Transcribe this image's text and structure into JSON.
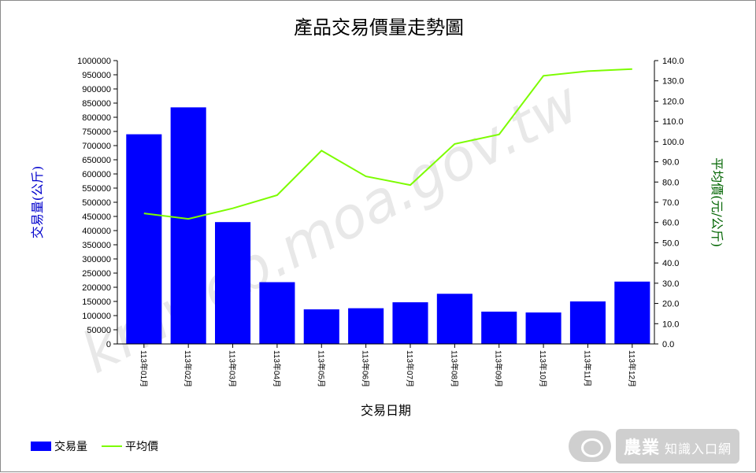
{
  "chart_data": {
    "type": "bar+line",
    "title": "產品交易價量走勢圖",
    "xlabel": "交易日期",
    "ylabel_left": "交易量(公斤)",
    "ylabel_right": "平均價(元/公斤)",
    "categories": [
      "113年01月",
      "113年02月",
      "113年03月",
      "113年04月",
      "113年05月",
      "113年06月",
      "113年07月",
      "113年08月",
      "113年09月",
      "113年10月",
      "113年11月",
      "113年12月"
    ],
    "series": [
      {
        "name": "交易量",
        "type": "bar",
        "axis": "left",
        "color": "#0000ff",
        "values": [
          740000,
          835000,
          430000,
          218000,
          122000,
          126000,
          147000,
          177000,
          114000,
          111000,
          150000,
          220000
        ]
      },
      {
        "name": "平均價",
        "type": "line",
        "axis": "right",
        "color": "#7cfc00",
        "values": [
          64.5,
          61.8,
          67.0,
          73.5,
          95.5,
          82.8,
          78.5,
          98.8,
          103.5,
          132.5,
          134.8,
          135.8
        ]
      }
    ],
    "ylim_left": [
      0,
      1000000
    ],
    "yticks_left": [
      "0",
      "50000",
      "100000",
      "150000",
      "200000",
      "250000",
      "300000",
      "350000",
      "400000",
      "450000",
      "500000",
      "550000",
      "600000",
      "650000",
      "700000",
      "750000",
      "800000",
      "850000",
      "900000",
      "950000",
      "1000000"
    ],
    "ylim_right": [
      0,
      140
    ],
    "yticks_right": [
      "0.0",
      "10.0",
      "20.0",
      "30.0",
      "40.0",
      "50.0",
      "60.0",
      "70.0",
      "80.0",
      "90.0",
      "100.0",
      "110.0",
      "120.0",
      "130.0",
      "140.0"
    ],
    "legend_position": "bottom-left",
    "grid": false
  },
  "watermark": "kmweb.moa.gov.tw",
  "logo": {
    "main": "農業",
    "sub": "知識入口網"
  },
  "colors": {
    "left_axis_label": "#0000cc",
    "right_axis_label": "#006400",
    "text": "#000000"
  }
}
